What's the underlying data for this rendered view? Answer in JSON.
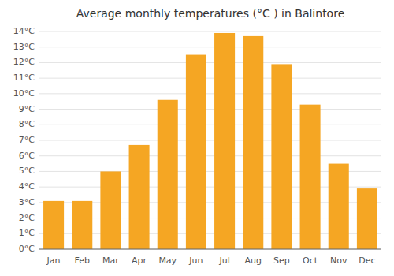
{
  "chart_data": {
    "type": "bar",
    "title": "Average monthly temperatures (°C ) in Balintore",
    "categories": [
      "Jan",
      "Feb",
      "Mar",
      "Apr",
      "May",
      "Jun",
      "Jul",
      "Aug",
      "Sep",
      "Oct",
      "Nov",
      "Dec"
    ],
    "values": [
      3.1,
      3.1,
      5.0,
      6.7,
      9.6,
      12.5,
      13.9,
      13.7,
      11.9,
      9.3,
      5.5,
      3.9
    ],
    "color": "#F5A623",
    "ylim": [
      0,
      14
    ],
    "yticks": [
      {
        "value": 0,
        "label": "0°C"
      },
      {
        "value": 1,
        "label": "1°C"
      },
      {
        "value": 2,
        "label": "2°C"
      },
      {
        "value": 3,
        "label": "3°C"
      },
      {
        "value": 4,
        "label": "4°C"
      },
      {
        "value": 5,
        "label": "5°C"
      },
      {
        "value": 6,
        "label": "6°C"
      },
      {
        "value": 7,
        "label": "7°C"
      },
      {
        "value": 8,
        "label": "8°C"
      },
      {
        "value": 9,
        "label": "9°C"
      },
      {
        "value": 10,
        "label": "10°C"
      },
      {
        "value": 11,
        "label": "11°C"
      },
      {
        "value": 12,
        "label": "12°C"
      },
      {
        "value": 13,
        "label": "13°C"
      },
      {
        "value": 14,
        "label": "14°C"
      }
    ],
    "grid": true
  }
}
